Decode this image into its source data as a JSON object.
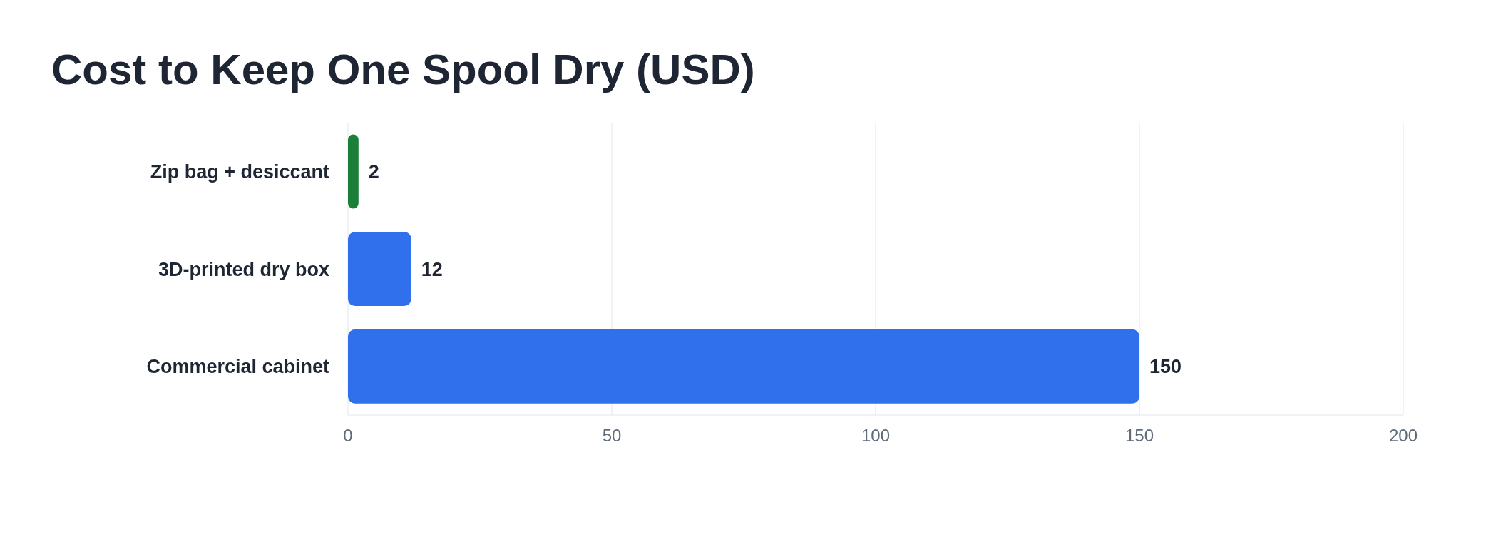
{
  "chart_data": {
    "type": "bar",
    "orientation": "horizontal",
    "title": "Cost to Keep One Spool Dry (USD)",
    "categories": [
      "Zip bag + desiccant",
      "3D-printed dry box",
      "Commercial cabinet"
    ],
    "values": [
      2,
      12,
      150
    ],
    "colors": [
      "#1b7f3a",
      "#3070ec",
      "#3070ec"
    ],
    "xlim": [
      0,
      200
    ],
    "xticks": [
      0,
      50,
      100,
      150,
      200
    ],
    "grid": "x",
    "data_labels": true
  }
}
